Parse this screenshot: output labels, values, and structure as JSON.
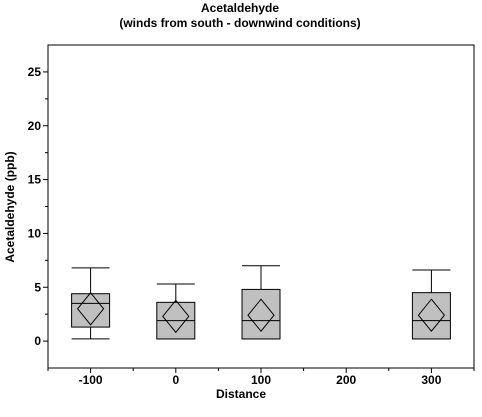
{
  "chart_data": {
    "type": "boxplot",
    "title": "Acetaldehyde",
    "subtitle": "(winds from south - downwind conditions)",
    "xlabel": "Distance",
    "ylabel": "Acetaldehyde (ppb)",
    "xlim": [
      -150,
      350
    ],
    "ylim": [
      -2.5,
      27.5
    ],
    "x_ticks": [
      "-100",
      "0",
      "100",
      "200",
      "300"
    ],
    "x_tick_values": [
      -100,
      0,
      100,
      200,
      300
    ],
    "y_ticks": [
      "0",
      "5",
      "10",
      "15",
      "20",
      "25"
    ],
    "y_tick_values": [
      0,
      5,
      10,
      15,
      20,
      25
    ],
    "grid": false,
    "box_color": "#c0c0c0",
    "boxes": [
      {
        "x": -100,
        "min": 0.2,
        "q1": 1.3,
        "median": 3.5,
        "q3": 4.4,
        "max": 6.8,
        "mean": 3.0
      },
      {
        "x": 0,
        "min": 0.2,
        "q1": 0.2,
        "median": 1.9,
        "q3": 3.6,
        "max": 5.3,
        "mean": 2.3
      },
      {
        "x": 100,
        "min": 0.2,
        "q1": 0.2,
        "median": 1.9,
        "q3": 4.8,
        "max": 7.0,
        "mean": 2.4
      },
      {
        "x": 300,
        "min": 0.2,
        "q1": 0.2,
        "median": 1.9,
        "q3": 4.5,
        "max": 6.6,
        "mean": 2.4
      }
    ]
  }
}
